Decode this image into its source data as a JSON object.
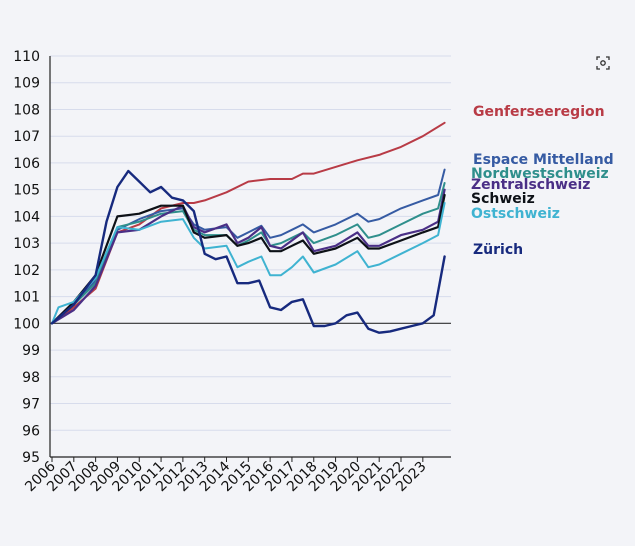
{
  "colors": {
    "background": "#f3f4f8",
    "grid": "#d7dcec",
    "baseline": "#333333"
  },
  "toolbar": {
    "expand_icon": "expand-icon"
  },
  "chart_data": {
    "type": "line",
    "title": "",
    "xlabel": "",
    "ylabel": "",
    "ylim": [
      95,
      110
    ],
    "xlim": [
      2006,
      2024.2
    ],
    "yticks": [
      "95",
      "96",
      "97",
      "98",
      "99",
      "100",
      "101",
      "102",
      "103",
      "104",
      "105",
      "106",
      "107",
      "108",
      "109",
      "110"
    ],
    "xticks": [
      "2006",
      "2007",
      "2008",
      "2009",
      "2010",
      "2011",
      "2012",
      "2013",
      "2014",
      "2015",
      "2016",
      "2017",
      "2018",
      "2019",
      "2020",
      "2021",
      "2022",
      "2023"
    ],
    "baseline": 100,
    "grid": true,
    "legend": "right, labels at line ends",
    "series": [
      {
        "name": "Genferseeregion",
        "color": "#b83b46",
        "width": 2,
        "x": [
          2006,
          2007,
          2008,
          2009,
          2010,
          2011,
          2012,
          2012.5,
          2013,
          2014,
          2015,
          2016,
          2017,
          2017.5,
          2018,
          2019,
          2020,
          2021,
          2022,
          2023,
          2024
        ],
        "y": [
          100,
          100.6,
          101.3,
          103.4,
          103.7,
          104.3,
          104.5,
          104.5,
          104.6,
          104.9,
          105.3,
          105.4,
          105.4,
          105.6,
          105.6,
          105.85,
          106.1,
          106.3,
          106.6,
          107.0,
          107.5
        ]
      },
      {
        "name": "Espace Mittelland",
        "color": "#365ba3",
        "width": 2,
        "x": [
          2006,
          2007,
          2008,
          2009,
          2010,
          2011,
          2012,
          2012.5,
          2013,
          2014,
          2014.5,
          2015,
          2015.6,
          2016,
          2016.5,
          2017,
          2017.5,
          2018,
          2019,
          2020,
          2020.5,
          2021,
          2022,
          2023,
          2023.7,
          2024
        ],
        "y": [
          100,
          100.7,
          101.6,
          103.5,
          103.9,
          104.2,
          104.3,
          103.7,
          103.5,
          103.6,
          103.2,
          103.4,
          103.65,
          103.2,
          103.3,
          103.5,
          103.7,
          103.4,
          103.7,
          104.1,
          103.8,
          103.9,
          104.3,
          104.6,
          104.8,
          105.75
        ]
      },
      {
        "name": "Nordwestschweiz",
        "color": "#2f8f8c",
        "width": 2,
        "x": [
          2006,
          2007,
          2008,
          2009,
          2010,
          2011,
          2012,
          2012.5,
          2013,
          2014,
          2014.5,
          2015,
          2015.6,
          2016,
          2016.5,
          2017,
          2017.5,
          2018,
          2019,
          2020,
          2020.5,
          2021,
          2022,
          2023,
          2023.7,
          2024
        ],
        "y": [
          100,
          100.7,
          101.5,
          103.6,
          103.8,
          104.1,
          104.2,
          103.5,
          103.3,
          103.3,
          102.9,
          103.1,
          103.4,
          102.9,
          103.0,
          103.2,
          103.4,
          103.0,
          103.3,
          103.7,
          103.2,
          103.3,
          103.7,
          104.1,
          104.3,
          105.25
        ]
      },
      {
        "name": "Zentralschweiz",
        "color": "#4a2f86",
        "width": 2.2,
        "x": [
          2006,
          2007,
          2008,
          2009,
          2010,
          2011,
          2012,
          2012.5,
          2013,
          2014,
          2014.5,
          2015,
          2015.6,
          2016,
          2016.5,
          2017,
          2017.5,
          2018,
          2019,
          2020,
          2020.5,
          2021,
          2022,
          2023,
          2023.7,
          2024
        ],
        "y": [
          100,
          100.5,
          101.4,
          103.4,
          103.5,
          104.0,
          104.4,
          103.6,
          103.4,
          103.7,
          103.0,
          103.2,
          103.6,
          102.9,
          102.8,
          103.1,
          103.4,
          102.7,
          102.9,
          103.4,
          102.9,
          102.9,
          103.3,
          103.5,
          103.8,
          105.0
        ]
      },
      {
        "name": "Schweiz",
        "color": "#0d1117",
        "width": 2.2,
        "x": [
          2006,
          2007,
          2008,
          2009,
          2010,
          2011,
          2012,
          2012.5,
          2013,
          2014,
          2014.5,
          2015,
          2015.6,
          2016,
          2016.5,
          2017,
          2017.5,
          2018,
          2019,
          2020,
          2020.5,
          2021,
          2022,
          2023,
          2023.7,
          2024
        ],
        "y": [
          100,
          100.8,
          101.8,
          104.0,
          104.1,
          104.4,
          104.4,
          103.4,
          103.2,
          103.3,
          102.9,
          103.0,
          103.2,
          102.7,
          102.7,
          102.9,
          103.1,
          102.6,
          102.8,
          103.2,
          102.8,
          102.8,
          103.1,
          103.4,
          103.6,
          104.8
        ]
      },
      {
        "name": "Ostschweiz",
        "color": "#3fb3d1",
        "width": 2,
        "x": [
          2006,
          2006.3,
          2007,
          2008,
          2009,
          2010,
          2011,
          2012,
          2012.5,
          2013,
          2014,
          2014.5,
          2015,
          2015.6,
          2016,
          2016.5,
          2017,
          2017.5,
          2018,
          2019,
          2020,
          2020.5,
          2021,
          2022,
          2023,
          2023.7,
          2024
        ],
        "y": [
          100,
          100.6,
          100.8,
          101.7,
          103.6,
          103.5,
          103.8,
          103.9,
          103.2,
          102.8,
          102.9,
          102.1,
          102.3,
          102.5,
          101.8,
          101.8,
          102.1,
          102.5,
          101.9,
          102.2,
          102.7,
          102.1,
          102.2,
          102.6,
          103.0,
          103.3,
          104.5
        ]
      },
      {
        "name": "Zürich",
        "color": "#172a7e",
        "width": 2.4,
        "x": [
          2006,
          2007,
          2008,
          2008.5,
          2009,
          2009.5,
          2010,
          2010.5,
          2011,
          2011.5,
          2012,
          2012.5,
          2013,
          2013.5,
          2014,
          2014.5,
          2015,
          2015.5,
          2016,
          2016.5,
          2017,
          2017.5,
          2018,
          2018.5,
          2019,
          2019.5,
          2020,
          2020.5,
          2021,
          2021.5,
          2022,
          2022.5,
          2023,
          2023.5,
          2024
        ],
        "y": [
          100,
          100.7,
          101.8,
          103.8,
          105.1,
          105.7,
          105.3,
          104.9,
          105.1,
          104.7,
          104.6,
          104.2,
          102.6,
          102.4,
          102.5,
          101.5,
          101.5,
          101.6,
          100.6,
          100.5,
          100.8,
          100.9,
          99.9,
          99.9,
          100.0,
          100.3,
          100.4,
          99.8,
          99.65,
          99.7,
          99.8,
          99.9,
          100.0,
          100.3,
          102.5
        ]
      }
    ]
  }
}
